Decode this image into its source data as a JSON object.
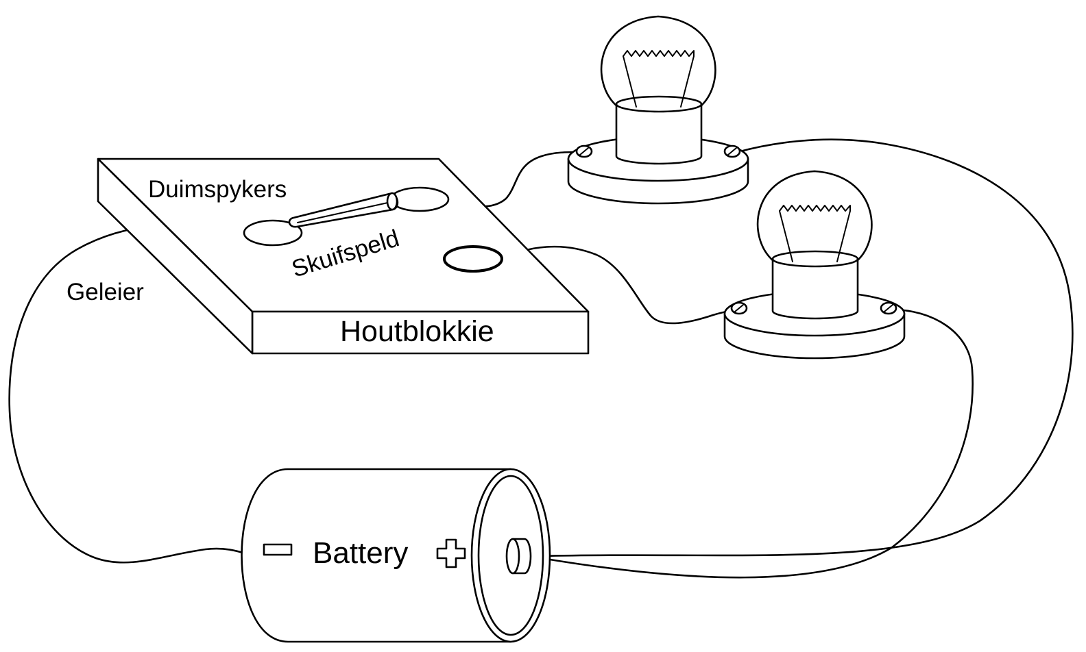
{
  "labels": {
    "thumbtacks": "Duimspykers",
    "safety_pin": "Skuifspeld",
    "wire": "Geleier",
    "wood_block": "Houtblokkie",
    "battery": "Battery"
  },
  "battery_symbols": {
    "negative": "minus-symbol",
    "positive": "plus-symbol"
  },
  "colors": {
    "line": "#000000",
    "background": "#ffffff"
  }
}
